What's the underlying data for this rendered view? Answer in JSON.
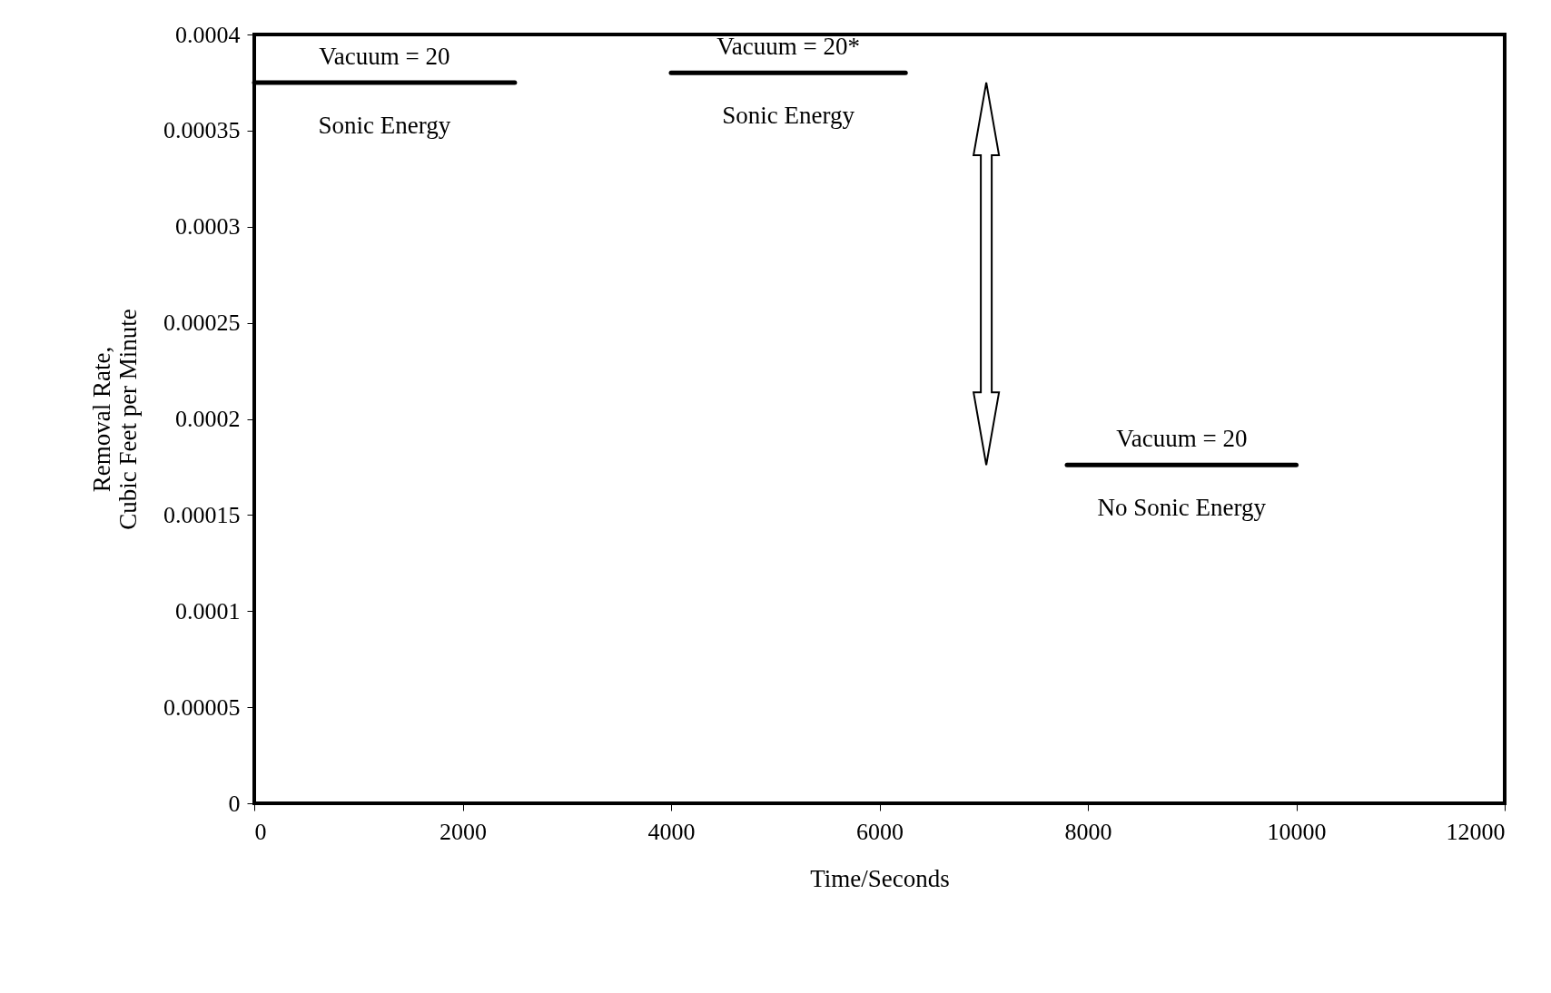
{
  "chart_data": {
    "type": "line",
    "xlabel": "Time/Seconds",
    "ylabel": "Removal Rate,\nCubic Feet per Minute",
    "xlim": [
      0,
      12000
    ],
    "xticks": [
      0,
      2000,
      4000,
      6000,
      8000,
      10000,
      12000
    ],
    "ylim": [
      0,
      0.0004
    ],
    "yticks": [
      {
        "value": 0,
        "label": "0"
      },
      {
        "value": 5e-05,
        "label": "0.00005"
      },
      {
        "value": 0.0001,
        "label": "0.0001"
      },
      {
        "value": 0.00015,
        "label": "0.00015"
      },
      {
        "value": 0.0002,
        "label": "0.0002"
      },
      {
        "value": 0.00025,
        "label": "0.00025"
      },
      {
        "value": 0.0003,
        "label": "0.0003"
      },
      {
        "value": 0.00035,
        "label": "0.00035"
      },
      {
        "value": 0.0004,
        "label": "0.0004"
      }
    ],
    "line_style": "solid",
    "series": [
      {
        "color": "#000000",
        "x": [
          0,
          2500
        ],
        "values": [
          0.000375,
          0.000375
        ]
      },
      {
        "color": "#000000",
        "x": [
          4000,
          6250
        ],
        "values": [
          0.00038,
          0.00038
        ]
      },
      {
        "color": "#000000",
        "x": [
          7800,
          10000
        ],
        "values": [
          0.000176,
          0.000176
        ]
      }
    ],
    "annotations": [
      "Vacuum = 20",
      "Sonic Energy",
      "Vacuum = 20*",
      "Sonic Energy",
      "Vacuum = 20",
      "No Sonic Energy"
    ]
  }
}
